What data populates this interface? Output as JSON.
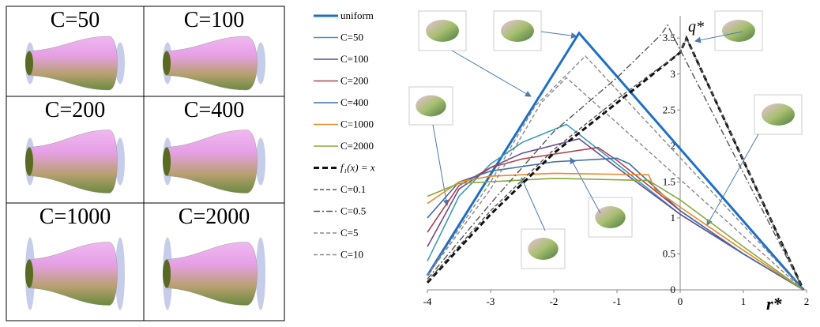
{
  "image_grid": {
    "labels": [
      "C=50",
      "C=100",
      "C=200",
      "C=400",
      "C=1000",
      "C=2000"
    ]
  },
  "chart_data": {
    "type": "line",
    "y_label": "q*",
    "x_label": "r*",
    "xlim": [
      -4,
      2
    ],
    "xticks": [
      -4,
      -3,
      -2,
      -1,
      0,
      1,
      2
    ],
    "ylim": [
      0,
      3.7
    ],
    "yticks": [
      0,
      0.5,
      1,
      1.5,
      2,
      2.5,
      3,
      3.5
    ],
    "series": [
      {
        "name": "uniform",
        "color": "#1f6fc5",
        "style": "bold",
        "x": [
          -4,
          -1.6,
          1.95
        ],
        "values": [
          0.2,
          3.57,
          0
        ]
      },
      {
        "name": "C=50",
        "color": "#3a9bb5",
        "style": "solid",
        "x": [
          -4,
          -3.5,
          -3,
          -2.5,
          -1.8,
          -1,
          0,
          1,
          1.95
        ],
        "values": [
          0.4,
          1.3,
          1.75,
          2.05,
          2.3,
          1.75,
          1.05,
          0.5,
          0
        ]
      },
      {
        "name": "C=100",
        "color": "#6a4a94",
        "style": "solid",
        "x": [
          -4,
          -3.5,
          -3,
          -2.5,
          -1.6,
          -1,
          0,
          1,
          1.95
        ],
        "values": [
          0.6,
          1.4,
          1.7,
          1.9,
          2.1,
          1.7,
          1.05,
          0.5,
          0
        ]
      },
      {
        "name": "C=200",
        "color": "#b0404a",
        "style": "solid",
        "x": [
          -4,
          -3.5,
          -3,
          -2.5,
          -1.3,
          -1,
          0,
          1,
          1.95
        ],
        "values": [
          0.8,
          1.45,
          1.7,
          1.82,
          1.98,
          1.8,
          1.1,
          0.5,
          0
        ]
      },
      {
        "name": "C=400",
        "color": "#3f6fa6",
        "style": "solid",
        "x": [
          -4,
          -3.5,
          -3,
          -2,
          -1,
          -0.8,
          0,
          1,
          1.95
        ],
        "values": [
          1.0,
          1.5,
          1.65,
          1.78,
          1.83,
          1.75,
          1.1,
          0.5,
          0
        ]
      },
      {
        "name": "C=1000",
        "color": "#e8892a",
        "style": "solid",
        "x": [
          -4,
          -3.5,
          -3,
          -2,
          -0.5,
          -0.4,
          0,
          1,
          1.95
        ],
        "values": [
          1.2,
          1.5,
          1.58,
          1.62,
          1.6,
          1.4,
          1.15,
          0.55,
          0
        ]
      },
      {
        "name": "C=2000",
        "color": "#8aa83c",
        "style": "solid",
        "x": [
          -4,
          -3.5,
          -2,
          -0.5,
          0,
          1,
          1.95
        ],
        "values": [
          1.3,
          1.48,
          1.55,
          1.52,
          1.25,
          0.6,
          0
        ]
      },
      {
        "name": "f₁(x) = x",
        "color": "#111111",
        "style": "bold-dashed",
        "x": [
          -4,
          -3,
          -2,
          -1,
          0,
          0.1,
          1.95
        ],
        "values": [
          0.1,
          1.05,
          1.9,
          2.6,
          3.3,
          3.5,
          0
        ]
      },
      {
        "name": "C=0.1",
        "color": "#555555",
        "style": "dashed",
        "x": [
          -4,
          -3,
          -2,
          -1,
          0,
          0.1,
          1.95
        ],
        "values": [
          0.12,
          1.1,
          1.95,
          2.65,
          3.3,
          3.5,
          0
        ]
      },
      {
        "name": "C=0.5",
        "color": "#555555",
        "style": "dashdot",
        "x": [
          -4,
          -3,
          -2,
          -1,
          -0.3,
          -0.2,
          1.95
        ],
        "values": [
          0.15,
          1.2,
          2.2,
          2.95,
          3.55,
          3.68,
          0
        ]
      },
      {
        "name": "C=5",
        "color": "#888888",
        "style": "dashed",
        "x": [
          -4,
          -3,
          -2.3,
          -1.5,
          1.95
        ],
        "values": [
          0.2,
          1.5,
          2.55,
          3.25,
          0
        ]
      },
      {
        "name": "C=10",
        "color": "#888888",
        "style": "dashed",
        "x": [
          -4,
          -3,
          -2.2,
          -1.8,
          1.95
        ],
        "values": [
          0.2,
          1.4,
          2.6,
          2.95,
          0
        ]
      }
    ]
  }
}
